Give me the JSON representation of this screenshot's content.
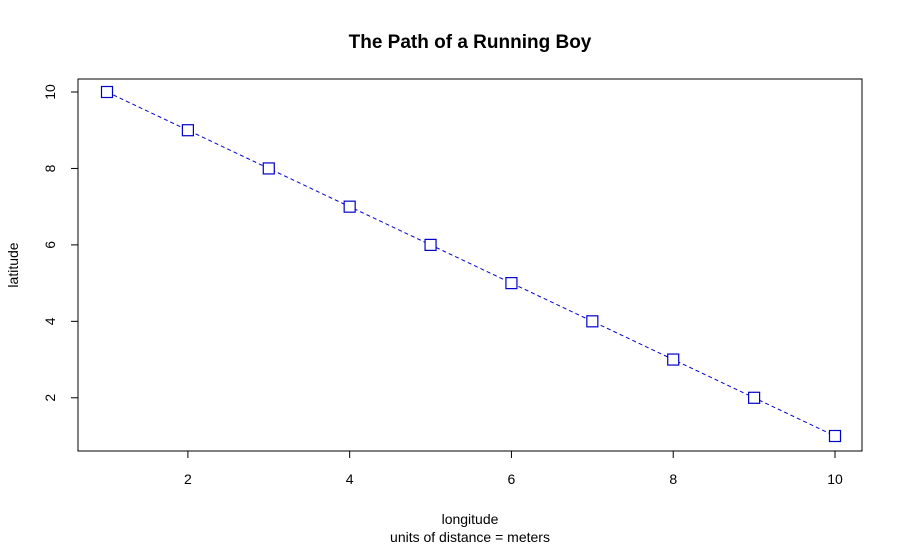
{
  "chart_data": {
    "type": "line",
    "title": "The Path of a Running Boy",
    "xlabel": "longitude",
    "sub": "units of distance = meters",
    "ylabel": "latitude",
    "x": [
      1,
      2,
      3,
      4,
      5,
      6,
      7,
      8,
      9,
      10
    ],
    "y": [
      10,
      9,
      8,
      7,
      6,
      5,
      4,
      3,
      2,
      1
    ],
    "xlim": [
      1,
      10
    ],
    "ylim": [
      1,
      10
    ],
    "xticks": [
      2,
      4,
      6,
      8,
      10
    ],
    "yticks": [
      2,
      4,
      6,
      8,
      10
    ],
    "line_style": "dashed",
    "marker": "open-square",
    "series_color": "#0000cc",
    "grid": false,
    "legend": "none"
  }
}
